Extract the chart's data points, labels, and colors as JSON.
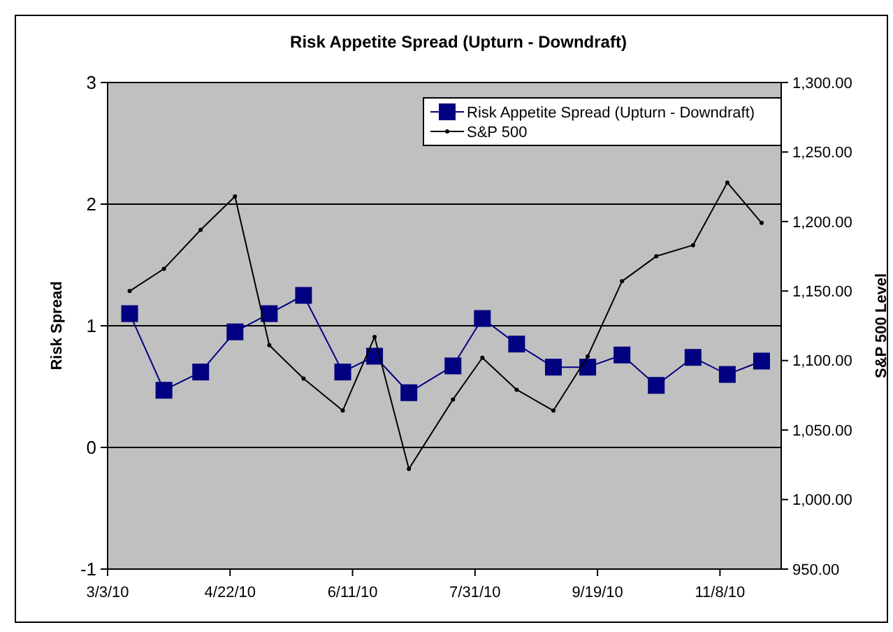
{
  "chart_data": {
    "type": "line",
    "title": "Risk Appetite Spread (Upturn - Downdraft)",
    "ylabel": "Risk Spread",
    "y2label": "S&P 500 Level",
    "x": [
      "2010-03-12",
      "2010-03-26",
      "2010-04-10",
      "2010-04-24",
      "2010-05-08",
      "2010-05-22",
      "2010-06-07",
      "2010-06-20",
      "2010-07-04",
      "2010-07-22",
      "2010-08-03",
      "2010-08-17",
      "2010-09-01",
      "2010-09-15",
      "2010-09-29",
      "2010-10-13",
      "2010-10-28",
      "2010-11-11",
      "2010-11-25"
    ],
    "series": [
      {
        "name": "Risk Appetite Spread (Upturn - Downdraft)",
        "color": "#000080",
        "marker": "square",
        "values": [
          1.1,
          0.47,
          0.62,
          0.95,
          1.1,
          1.25,
          0.62,
          0.75,
          0.45,
          0.67,
          1.06,
          0.85,
          0.66,
          0.66,
          0.76,
          0.51,
          0.74,
          0.6,
          0.71
        ]
      },
      {
        "name": "S&P 500",
        "color": "#000000",
        "marker": "circle",
        "axis": "y2",
        "values": [
          1150,
          1166,
          1194,
          1218,
          1111,
          1087,
          1064,
          1117,
          1022,
          1072,
          1102,
          1079,
          1064,
          1103,
          1157,
          1175,
          1183,
          1228,
          1199
        ]
      }
    ],
    "xlim": [
      "2010-03-03",
      "2010-12-03"
    ],
    "xticks": [
      {
        "value": "2010-03-03",
        "label": "3/3/10"
      },
      {
        "value": "2010-04-22",
        "label": "4/22/10"
      },
      {
        "value": "2010-06-11",
        "label": "6/11/10"
      },
      {
        "value": "2010-07-31",
        "label": "7/31/10"
      },
      {
        "value": "2010-09-19",
        "label": "9/19/10"
      },
      {
        "value": "2010-11-08",
        "label": "11/8/10"
      }
    ],
    "ylim": [
      -1,
      3
    ],
    "yticks": [
      -1,
      0,
      1,
      2,
      3
    ],
    "y2lim": [
      950,
      1300
    ],
    "y2ticks": [
      {
        "value": 950,
        "label": "950.00"
      },
      {
        "value": 1000,
        "label": "1,000.00"
      },
      {
        "value": 1050,
        "label": "1,050.00"
      },
      {
        "value": 1100,
        "label": "1,100.00"
      },
      {
        "value": 1150,
        "label": "1,150.00"
      },
      {
        "value": 1200,
        "label": "1,200.00"
      },
      {
        "value": 1250,
        "label": "1,250.00"
      },
      {
        "value": 1300,
        "label": "1,300.00"
      }
    ],
    "grid": "y",
    "legend": "top right"
  }
}
